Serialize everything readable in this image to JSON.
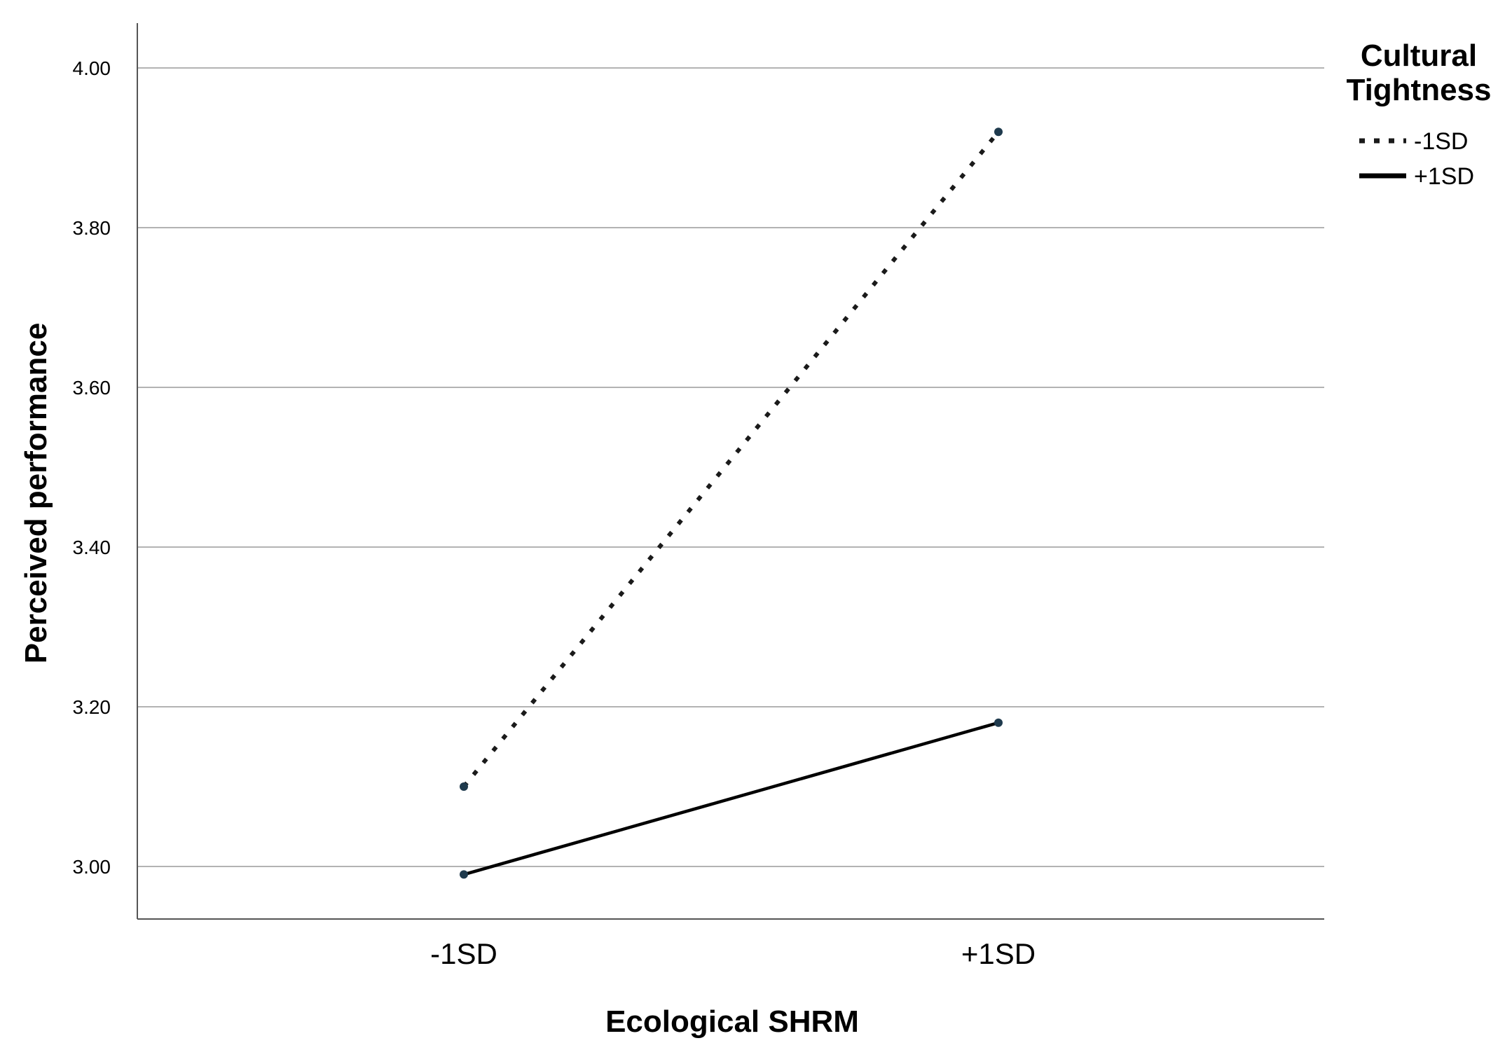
{
  "chart_data": {
    "type": "line",
    "xlabel": "Ecological SHRM",
    "ylabel": "Perceived performance",
    "categories": [
      "-1SD",
      "+1SD"
    ],
    "ylim": [
      2.935,
      4.055
    ],
    "yticks": [
      "3.00",
      "3.20",
      "3.40",
      "3.60",
      "3.80",
      "4.00"
    ],
    "grid": true,
    "legend": {
      "title_lines": [
        "Cultural",
        "Tightness"
      ],
      "placement": "right"
    },
    "series": [
      {
        "name": "-1SD",
        "values": [
          3.1,
          3.92
        ],
        "style": "dotted",
        "color": "#1a1a1a"
      },
      {
        "name": "+1SD",
        "values": [
          2.99,
          3.18
        ],
        "style": "solid",
        "color": "#000000"
      }
    ],
    "colors": {
      "grid": "#b3b3b3",
      "axis": "#555555",
      "marker": "#1f3a4d"
    }
  }
}
